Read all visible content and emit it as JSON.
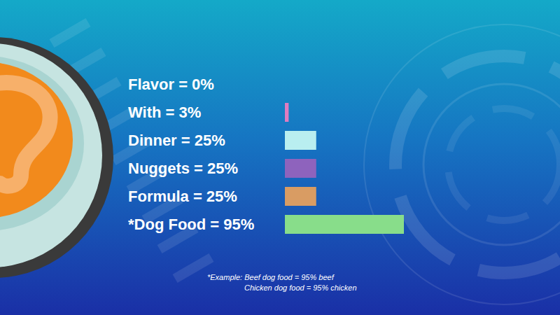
{
  "chart_data": {
    "type": "bar",
    "orientation": "horizontal",
    "categories": [
      "Flavor = 0%",
      "With = 3%",
      "Dinner = 25%",
      "Nuggets = 25%",
      "Formula = 25%",
      "*Dog Food = 95%"
    ],
    "values": [
      0,
      3,
      25,
      25,
      25,
      95
    ],
    "colors": [
      "#3f9f5f",
      "#e07cc0",
      "#b9eef0",
      "#8e63bd",
      "#d99c63",
      "#88dd8a"
    ],
    "tick_labels": "y",
    "grid": false,
    "annotations": [
      "*Example: Beef dog food = 95% beef",
      "Chicken dog food = 95% chicken"
    ]
  }
}
